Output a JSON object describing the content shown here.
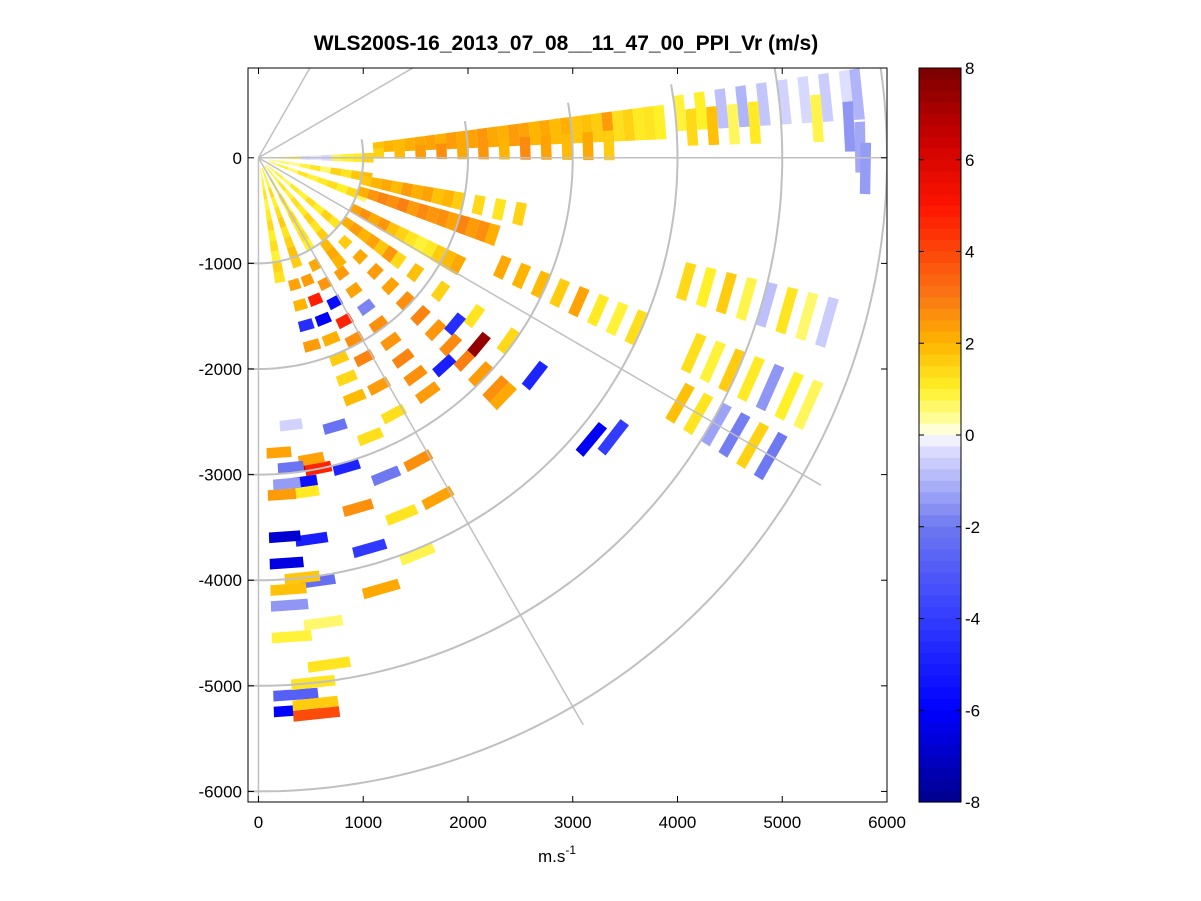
{
  "chart_data": {
    "type": "heatmap",
    "subtype": "polar-ppi",
    "title": "WLS200S-16_2013_07_08__11_47_00_PPI_Vr (m/s)",
    "xlabel_base": "m.s",
    "xlabel_sup": "-1",
    "ylabel": "",
    "xlim": [
      -100,
      6000
    ],
    "ylim": [
      -6100,
      850
    ],
    "x_ticks": [
      0,
      1000,
      2000,
      3000,
      4000,
      5000,
      6000
    ],
    "x_tick_labels": [
      "0",
      "1000",
      "2000",
      "3000",
      "4000",
      "5000",
      "6000"
    ],
    "y_ticks": [
      0,
      -1000,
      -2000,
      -3000,
      -4000,
      -5000,
      -6000
    ],
    "y_tick_labels": [
      "0",
      "-1000",
      "-2000",
      "-3000",
      "-4000",
      "-5000",
      "-6000"
    ],
    "polar_grid": {
      "ring_radii": [
        1000,
        2000,
        3000,
        4000,
        5000,
        6000
      ],
      "ray_angles_deg": [
        30,
        60,
        90,
        120,
        150,
        180
      ],
      "color": "#c0c0c0"
    },
    "colorbar": {
      "min": -8,
      "max": 8,
      "ticks": [
        8,
        6,
        4,
        2,
        0,
        -2,
        -4,
        -6,
        -8
      ],
      "tick_labels": [
        "8",
        "6",
        "4",
        "2",
        "0",
        "-2",
        "-4",
        "-6",
        "-8"
      ],
      "colormap": "blue-white-yellow-red",
      "levels": 64
    },
    "range_gate_m": 100,
    "cells_note": "Each cell: [range_m, azimuth_deg_clockwise_from_east_along_x, velocity_m_s]",
    "cells": [
      [
        150,
        -20,
        0.8
      ],
      [
        250,
        -20,
        1.0
      ],
      [
        350,
        -20,
        0.6
      ],
      [
        450,
        -20,
        1.2
      ],
      [
        550,
        -20,
        0.9
      ],
      [
        650,
        -20,
        1.1
      ],
      [
        750,
        -20,
        1.3
      ],
      [
        850,
        -20,
        1.0
      ],
      [
        950,
        -20,
        1.4
      ],
      [
        1050,
        -20,
        0.7
      ],
      [
        150,
        -10,
        0.5
      ],
      [
        250,
        -10,
        0.7
      ],
      [
        350,
        -10,
        0.4
      ],
      [
        450,
        -10,
        0.9
      ],
      [
        550,
        -10,
        1.2
      ],
      [
        650,
        -10,
        0.6
      ],
      [
        750,
        -10,
        1.5
      ],
      [
        850,
        -10,
        1.2
      ],
      [
        950,
        -10,
        1.7
      ],
      [
        1050,
        -10,
        1.9
      ],
      [
        150,
        0,
        0.3
      ],
      [
        250,
        0,
        0.4
      ],
      [
        350,
        0,
        0.6
      ],
      [
        450,
        0,
        -0.3
      ],
      [
        550,
        0,
        -0.2
      ],
      [
        650,
        0,
        -0.4
      ],
      [
        750,
        0,
        0.8
      ],
      [
        850,
        0,
        1.0
      ],
      [
        950,
        0,
        1.1
      ],
      [
        1050,
        0,
        1.5
      ],
      [
        1150,
        5,
        1.8
      ],
      [
        1250,
        5,
        2.0
      ],
      [
        1350,
        5,
        1.9
      ],
      [
        1450,
        5,
        2.1
      ],
      [
        1550,
        5,
        2.2
      ],
      [
        1650,
        5,
        2.3
      ],
      [
        1750,
        5,
        2.1
      ],
      [
        1850,
        5,
        2.4
      ],
      [
        1950,
        5,
        2.2
      ],
      [
        2050,
        5,
        2.3
      ],
      [
        2150,
        5,
        2.5
      ],
      [
        2250,
        5,
        2.2
      ],
      [
        2350,
        5,
        2.1
      ],
      [
        2450,
        5,
        2.4
      ],
      [
        2550,
        5,
        2.3
      ],
      [
        2650,
        5,
        2.0
      ],
      [
        2750,
        5,
        2.2
      ],
      [
        2850,
        5,
        1.9
      ],
      [
        2950,
        5,
        2.1
      ],
      [
        3050,
        5,
        1.7
      ],
      [
        3150,
        5,
        1.8
      ],
      [
        3250,
        5,
        1.6
      ],
      [
        3350,
        5,
        2.4
      ],
      [
        3450,
        5,
        1.3
      ],
      [
        3550,
        5,
        1.5
      ],
      [
        3650,
        5,
        1.1
      ],
      [
        3750,
        5,
        1.2
      ],
      [
        3850,
        5,
        1.0
      ],
      [
        1150,
        2,
        1.5
      ],
      [
        1350,
        2,
        1.9
      ],
      [
        1550,
        2,
        2.4
      ],
      [
        1750,
        2,
        2.6
      ],
      [
        1950,
        2,
        2.2
      ],
      [
        2150,
        2,
        2.5
      ],
      [
        2350,
        2,
        2.0
      ],
      [
        2550,
        2,
        2.7
      ],
      [
        2750,
        2,
        2.3
      ],
      [
        2950,
        2,
        1.9
      ],
      [
        3150,
        2,
        2.2
      ],
      [
        3350,
        2,
        1.6
      ],
      [
        4050,
        6,
        0.9
      ],
      [
        4250,
        6,
        1.0
      ],
      [
        4450,
        6,
        -0.8
      ],
      [
        4650,
        6,
        -1.0
      ],
      [
        4850,
        6,
        -0.7
      ],
      [
        5050,
        6,
        -0.5
      ],
      [
        5250,
        6,
        -0.4
      ],
      [
        5450,
        6,
        -0.6
      ],
      [
        5650,
        6,
        -0.3
      ],
      [
        5750,
        6,
        -1.0
      ],
      [
        4150,
        4,
        1.4
      ],
      [
        4350,
        4,
        1.8
      ],
      [
        4550,
        4,
        0.7
      ],
      [
        4750,
        4,
        1.1
      ],
      [
        5350,
        4,
        0.8
      ],
      [
        5650,
        3,
        -1.5
      ],
      [
        5750,
        1,
        -1.2
      ],
      [
        5800,
        -1,
        -1.4
      ],
      [
        1050,
        -28,
        2.3
      ],
      [
        1150,
        -28,
        2.6
      ],
      [
        1250,
        -28,
        2.2
      ],
      [
        1350,
        -28,
        2.5
      ],
      [
        1450,
        -28,
        1.8
      ],
      [
        1550,
        -28,
        1.5
      ],
      [
        1650,
        -28,
        1.2
      ],
      [
        1750,
        -28,
        0.9
      ],
      [
        1850,
        -28,
        1.1
      ],
      [
        1950,
        -28,
        1.6
      ],
      [
        2050,
        -28,
        1.9
      ],
      [
        2150,
        -28,
        2.2
      ],
      [
        1050,
        -18,
        2.1
      ],
      [
        1150,
        -18,
        2.5
      ],
      [
        1250,
        -18,
        2.8
      ],
      [
        1350,
        -18,
        2.6
      ],
      [
        1450,
        -18,
        2.9
      ],
      [
        1550,
        -18,
        2.4
      ],
      [
        1650,
        -18,
        2.7
      ],
      [
        1750,
        -18,
        2.5
      ],
      [
        1850,
        -18,
        2.6
      ],
      [
        1950,
        -18,
        2.3
      ],
      [
        2050,
        -18,
        2.8
      ],
      [
        2150,
        -18,
        2.4
      ],
      [
        2250,
        -18,
        2.6
      ],
      [
        2350,
        -18,
        2.1
      ],
      [
        1050,
        -12,
        1.7
      ],
      [
        1150,
        -12,
        2.0
      ],
      [
        1250,
        -12,
        2.2
      ],
      [
        1350,
        -12,
        1.9
      ],
      [
        1450,
        -12,
        2.4
      ],
      [
        1550,
        -12,
        2.1
      ],
      [
        1650,
        -12,
        2.3
      ],
      [
        1750,
        -12,
        1.8
      ],
      [
        1850,
        -12,
        2.0
      ],
      [
        1950,
        -12,
        1.6
      ],
      [
        2150,
        -12,
        1.4
      ],
      [
        2350,
        -12,
        1.2
      ],
      [
        2550,
        -12,
        1.5
      ],
      [
        2550,
        -24,
        2.2
      ],
      [
        2750,
        -24,
        2.0
      ],
      [
        2950,
        -24,
        1.9
      ],
      [
        3150,
        -24,
        1.6
      ],
      [
        3350,
        -24,
        2.3
      ],
      [
        3550,
        -24,
        1.1
      ],
      [
        3750,
        -24,
        0.9
      ],
      [
        3950,
        -24,
        1.3
      ],
      [
        4250,
        -16,
        1.4
      ],
      [
        4450,
        -16,
        1.0
      ],
      [
        4650,
        -16,
        1.6
      ],
      [
        4850,
        -16,
        0.8
      ],
      [
        5050,
        -16,
        -0.8
      ],
      [
        5250,
        -16,
        1.2
      ],
      [
        5450,
        -16,
        0.6
      ],
      [
        5650,
        -16,
        -0.6
      ],
      [
        4550,
        -24,
        1.3
      ],
      [
        4750,
        -24,
        0.9
      ],
      [
        4950,
        -24,
        1.6
      ],
      [
        5150,
        -24,
        1.1
      ],
      [
        5350,
        -24,
        -1.5
      ],
      [
        5550,
        -24,
        1.0
      ],
      [
        5750,
        -24,
        0.7
      ],
      [
        4650,
        -30,
        1.8
      ],
      [
        4850,
        -30,
        1.2
      ],
      [
        5050,
        -30,
        -1.3
      ],
      [
        5250,
        -30,
        -1.9
      ],
      [
        5450,
        -30,
        1.5
      ],
      [
        5650,
        -30,
        -2.0
      ],
      [
        150,
        -40,
        0.7
      ],
      [
        250,
        -40,
        1.0
      ],
      [
        350,
        -40,
        0.6
      ],
      [
        450,
        -40,
        1.1
      ],
      [
        550,
        -40,
        0.9
      ],
      [
        650,
        -40,
        1.3
      ],
      [
        750,
        -40,
        1.0
      ],
      [
        850,
        -40,
        1.5
      ],
      [
        950,
        -40,
        1.2
      ],
      [
        1050,
        -36,
        2.1
      ],
      [
        1150,
        -36,
        2.4
      ],
      [
        1250,
        -36,
        2.0
      ],
      [
        1350,
        -36,
        2.3
      ],
      [
        1450,
        -36,
        1.7
      ],
      [
        1550,
        -36,
        2.5
      ],
      [
        1650,
        -36,
        1.4
      ],
      [
        1850,
        -36,
        1.8
      ],
      [
        2150,
        -36,
        1.5
      ],
      [
        2550,
        -36,
        1.2
      ],
      [
        2950,
        -36,
        1.4
      ],
      [
        1150,
        -44,
        1.6
      ],
      [
        1350,
        -44,
        2.2
      ],
      [
        1550,
        -44,
        2.4
      ],
      [
        1750,
        -44,
        2.3
      ],
      [
        1950,
        -44,
        2.6
      ],
      [
        2150,
        -44,
        2.8
      ],
      [
        2350,
        -44,
        2.5
      ],
      [
        2550,
        -44,
        2.7
      ],
      [
        2750,
        -44,
        2.9
      ],
      [
        2950,
        -44,
        2.4
      ],
      [
        3150,
        -44,
        2.6
      ],
      [
        3250,
        -44,
        2.2
      ],
      [
        2750,
        -40,
        7.5
      ],
      [
        2450,
        -40,
        -4.5
      ],
      [
        2650,
        -48,
        -5.0
      ],
      [
        3350,
        -38,
        -4.8
      ],
      [
        4150,
        -40,
        -6.2
      ],
      [
        4300,
        -38,
        -4.0
      ],
      [
        150,
        -60,
        0.8
      ],
      [
        250,
        -60,
        1.1
      ],
      [
        350,
        -60,
        0.6
      ],
      [
        450,
        -60,
        1.2
      ],
      [
        550,
        -60,
        0.9
      ],
      [
        650,
        -60,
        1.4
      ],
      [
        750,
        -60,
        1.1
      ],
      [
        850,
        -60,
        1.3
      ],
      [
        950,
        -60,
        1.0
      ],
      [
        150,
        -70,
        1.1
      ],
      [
        250,
        -70,
        0.9
      ],
      [
        350,
        -70,
        1.4
      ],
      [
        450,
        -70,
        1.0
      ],
      [
        550,
        -70,
        1.3
      ],
      [
        650,
        -70,
        1.6
      ],
      [
        750,
        -70,
        1.2
      ],
      [
        850,
        -70,
        1.5
      ],
      [
        950,
        -70,
        1.8
      ],
      [
        1050,
        -70,
        1.6
      ],
      [
        150,
        -80,
        0.6
      ],
      [
        250,
        -80,
        0.9
      ],
      [
        350,
        -80,
        1.2
      ],
      [
        450,
        -80,
        0.8
      ],
      [
        550,
        -80,
        1.1
      ],
      [
        650,
        -80,
        1.4
      ],
      [
        750,
        -80,
        1.0
      ],
      [
        850,
        -80,
        1.3
      ],
      [
        950,
        -80,
        0.9
      ],
      [
        1050,
        -80,
        1.5
      ],
      [
        1150,
        -80,
        1.2
      ],
      [
        150,
        -50,
        1.0
      ],
      [
        250,
        -50,
        0.8
      ],
      [
        350,
        -50,
        1.2
      ],
      [
        450,
        -50,
        0.9
      ],
      [
        550,
        -50,
        1.3
      ],
      [
        650,
        -50,
        1.1
      ],
      [
        750,
        -50,
        1.5
      ],
      [
        850,
        -50,
        1.2
      ],
      [
        950,
        -50,
        1.6
      ],
      [
        1050,
        -52,
        1.9
      ],
      [
        1150,
        -52,
        2.2
      ],
      [
        1250,
        -52,
        2.0
      ],
      [
        1350,
        -54,
        2.4
      ],
      [
        1550,
        -54,
        2.3
      ],
      [
        1750,
        -54,
        -1.8
      ],
      [
        1950,
        -54,
        2.6
      ],
      [
        2150,
        -54,
        2.5
      ],
      [
        2350,
        -54,
        2.8
      ],
      [
        2550,
        -54,
        2.6
      ],
      [
        2750,
        -54,
        2.4
      ],
      [
        1150,
        -62,
        2.2
      ],
      [
        1350,
        -62,
        2.5
      ],
      [
        1550,
        -62,
        -5.6
      ],
      [
        1750,
        -62,
        4.7
      ],
      [
        1950,
        -62,
        2.6
      ],
      [
        2150,
        -62,
        2.8
      ],
      [
        2450,
        -62,
        2.4
      ],
      [
        2750,
        -62,
        1.3
      ],
      [
        3250,
        -62,
        2.6
      ],
      [
        3650,
        -62,
        2.3
      ],
      [
        1250,
        -68,
        2.4
      ],
      [
        1450,
        -68,
        4.8
      ],
      [
        1650,
        -68,
        -6.2
      ],
      [
        1850,
        -68,
        2.1
      ],
      [
        2050,
        -68,
        1.6
      ],
      [
        2250,
        -68,
        1.4
      ],
      [
        2450,
        -68,
        1.9
      ],
      [
        2850,
        -68,
        1.3
      ],
      [
        3250,
        -68,
        -2.0
      ],
      [
        3650,
        -68,
        1.2
      ],
      [
        4050,
        -68,
        0.8
      ],
      [
        1250,
        -74,
        2.3
      ],
      [
        1450,
        -74,
        2.0
      ],
      [
        1650,
        -74,
        -4.5
      ],
      [
        1850,
        -74,
        2.4
      ],
      [
        2650,
        -74,
        -2.2
      ],
      [
        3050,
        -74,
        -4.8
      ],
      [
        3450,
        -74,
        2.6
      ],
      [
        3850,
        -74,
        -4.1
      ],
      [
        4250,
        -74,
        2.2
      ],
      [
        2950,
        -80,
        6.8
      ],
      [
        3000,
        -79,
        4.7
      ],
      [
        2900,
        -80,
        2.3
      ],
      [
        3100,
        -82,
        -5.5
      ],
      [
        3200,
        -82,
        1.1
      ],
      [
        3650,
        -82,
        -5.0
      ],
      [
        4050,
        -82,
        -2.3
      ],
      [
        4450,
        -82,
        0.6
      ],
      [
        4850,
        -82,
        1.2
      ],
      [
        2800,
        -86,
        2.3
      ],
      [
        3200,
        -86,
        2.4
      ],
      [
        3600,
        -86,
        -6.8
      ],
      [
        4100,
        -86,
        1.8
      ],
      [
        4550,
        -86,
        0.9
      ],
      [
        5100,
        -86,
        -2.8
      ],
      [
        5250,
        -86,
        -6.0
      ],
      [
        4250,
        -86,
        -1.5
      ],
      [
        3850,
        -86,
        -6.5
      ],
      [
        2550,
        -83,
        -0.5
      ],
      [
        2950,
        -84,
        -2.1
      ],
      [
        3100,
        -85,
        -1.4
      ],
      [
        4000,
        -84,
        1.7
      ],
      [
        5000,
        -84,
        1.2
      ],
      [
        5200,
        -84,
        1.6
      ],
      [
        5300,
        -84,
        3.9
      ]
    ]
  }
}
